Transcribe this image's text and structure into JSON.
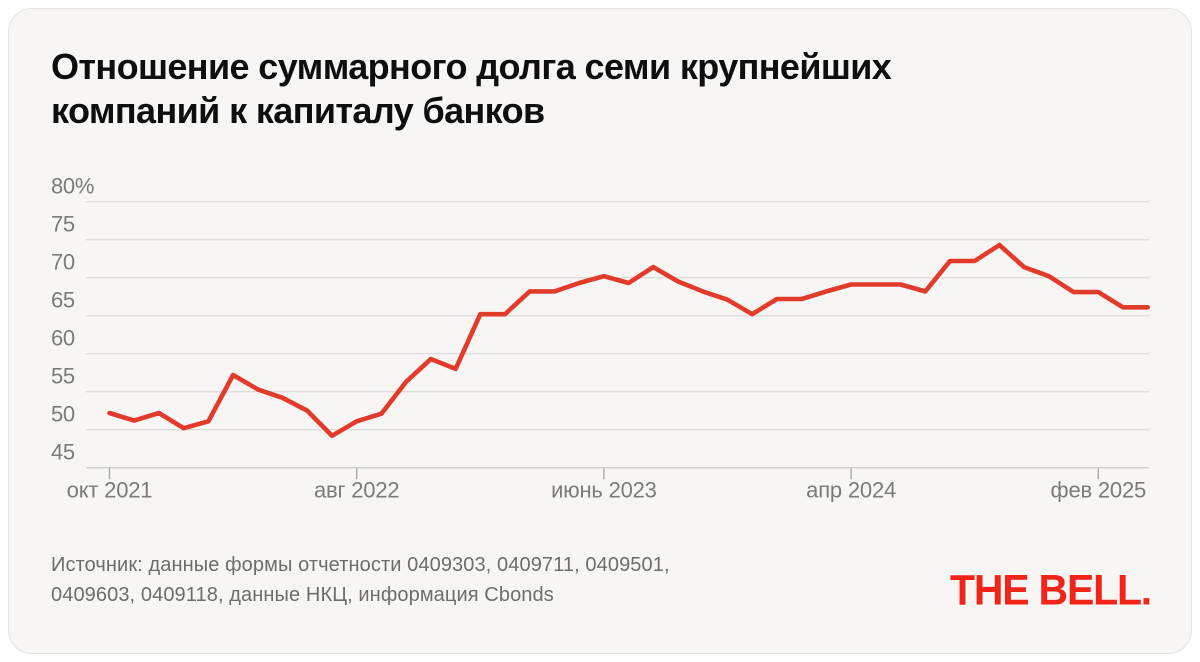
{
  "card": {
    "title_line1": "Отношение суммарного долга семи крупнейших",
    "title_line2": "компаний к капиталу банков",
    "source_line1": "Источник: данные формы отчетности 0409303, 0409711, 0409501,",
    "source_line2": "0409603, 0409118, данные НКЦ, информация Cbonds",
    "logo_text": "THE BELL."
  },
  "colors": {
    "line_red": "#e23b2c",
    "logo_red": "#f2241a",
    "grid": "#dddddb",
    "axis_line": "#cfcfcd",
    "tick": "#a3a3a1",
    "axis_text": "#7b7b79",
    "card_bg": "#f7f6f4",
    "title_text": "#0e0e0e"
  },
  "chart_data": {
    "type": "line",
    "title": "Отношение суммарного долга семи крупнейших компаний к капиталу банков",
    "unit": "%",
    "ylim": [
      45,
      80
    ],
    "grid": true,
    "legend": false,
    "y_tick_values": [
      80,
      75,
      70,
      65,
      60,
      55,
      50,
      45
    ],
    "y_tick_labels": [
      "80%",
      "75",
      "70",
      "65",
      "60",
      "55",
      "50",
      "45"
    ],
    "x_tick_labels": [
      "окт 2021",
      "авг 2022",
      "июнь 2023",
      "апр 2024",
      "фев 2025"
    ],
    "x_tick_indices": [
      0,
      10,
      20,
      30,
      40
    ],
    "series": [
      {
        "name": "Отношение суммарного долга к капиталу банков, %",
        "x": [
          "окт 2021",
          "ноя 2021",
          "дек 2021",
          "янв 2022",
          "фев 2022",
          "мар 2022",
          "апр 2022",
          "май 2022",
          "июн 2022",
          "июл 2022",
          "авг 2022",
          "сен 2022",
          "окт 2022",
          "ноя 2022",
          "дек 2022",
          "янв 2023",
          "фев 2023",
          "мар 2023",
          "апр 2023",
          "май 2023",
          "июн 2023",
          "июл 2023",
          "авг 2023",
          "сен 2023",
          "окт 2023",
          "ноя 2023",
          "дек 2023",
          "янв 2024",
          "фев 2024",
          "мар 2024",
          "апр 2024",
          "май 2024",
          "июн 2024",
          "июл 2024",
          "авг 2024",
          "сен 2024",
          "окт 2024",
          "ноя 2024",
          "дек 2024",
          "янв 2025",
          "фев 2025",
          "мар 2025",
          "апр 2025"
        ],
        "values": [
          52.2,
          51.2,
          52.2,
          50.2,
          51.1,
          57.2,
          55.3,
          54.2,
          52.5,
          49.2,
          51.1,
          52.1,
          56.3,
          59.3,
          58.0,
          65.2,
          65.2,
          68.2,
          68.2,
          69.3,
          70.2,
          69.3,
          71.4,
          69.5,
          68.2,
          67.1,
          65.2,
          67.2,
          67.2,
          68.2,
          69.1,
          69.1,
          69.1,
          68.2,
          72.2,
          72.2,
          74.3,
          71.4,
          70.2,
          68.1,
          68.1,
          66.1,
          66.1
        ]
      }
    ]
  }
}
